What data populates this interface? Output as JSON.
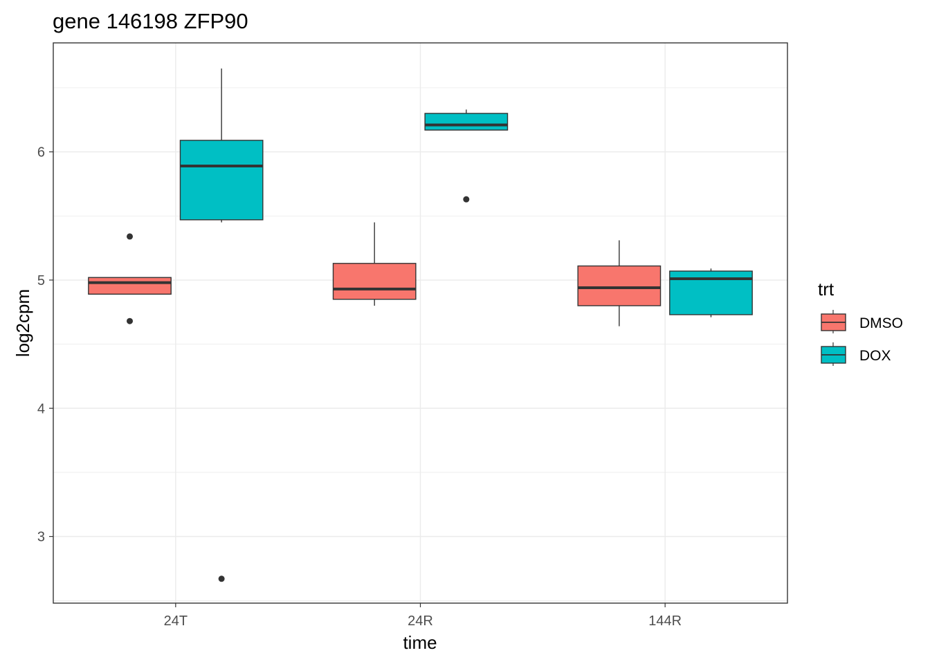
{
  "chart_data": {
    "type": "box",
    "title": "gene 146198 ZFP90",
    "xlabel": "time",
    "ylabel": "log2cpm",
    "categories": [
      "24T",
      "24R",
      "144R"
    ],
    "ylim": [
      2.48,
      6.85
    ],
    "yticks": [
      3,
      4,
      5,
      6
    ],
    "grid": true,
    "legend": {
      "title": "trt",
      "position": "right",
      "entries": [
        "DMSO",
        "DOX"
      ]
    },
    "series": [
      {
        "name": "DMSO",
        "color": "#F8766D",
        "boxes": [
          {
            "category": "24T",
            "whisker_low": 4.89,
            "q1": 4.89,
            "median": 4.98,
            "q3": 5.02,
            "whisker_high": 5.02,
            "outliers": [
              5.34,
              4.68
            ]
          },
          {
            "category": "24R",
            "whisker_low": 4.8,
            "q1": 4.85,
            "median": 4.93,
            "q3": 5.13,
            "whisker_high": 5.45,
            "outliers": []
          },
          {
            "category": "144R",
            "whisker_low": 4.64,
            "q1": 4.8,
            "median": 4.94,
            "q3": 5.11,
            "whisker_high": 5.31,
            "outliers": []
          }
        ]
      },
      {
        "name": "DOX",
        "color": "#00BFC4",
        "boxes": [
          {
            "category": "24T",
            "whisker_low": 5.45,
            "q1": 5.47,
            "median": 5.89,
            "q3": 6.09,
            "whisker_high": 6.65,
            "outliers": [
              2.67
            ]
          },
          {
            "category": "24R",
            "whisker_low": 6.17,
            "q1": 6.17,
            "median": 6.21,
            "q3": 6.3,
            "whisker_high": 6.33,
            "outliers": [
              5.63
            ]
          },
          {
            "category": "144R",
            "whisker_low": 4.71,
            "q1": 4.73,
            "median": 5.01,
            "q3": 5.07,
            "whisker_high": 5.09,
            "outliers": []
          }
        ]
      }
    ]
  }
}
